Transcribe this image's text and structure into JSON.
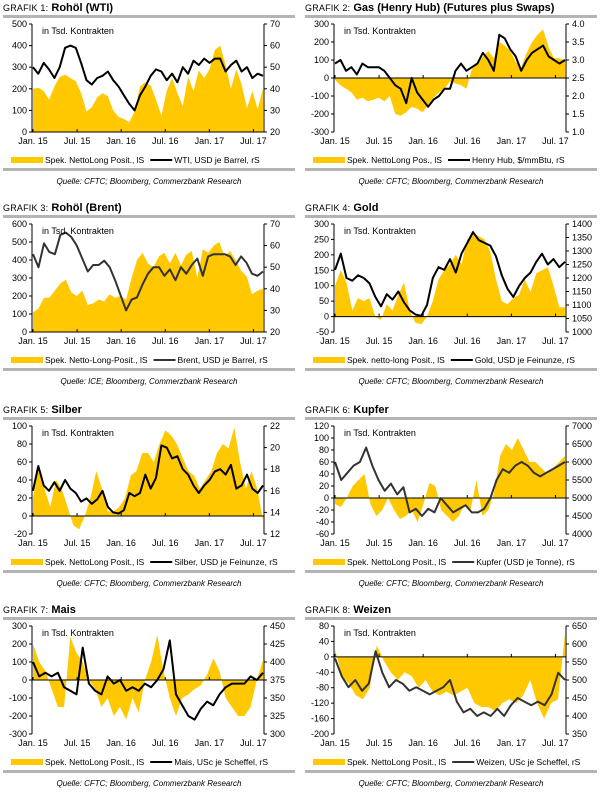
{
  "chart_data": [
    {
      "type": "area+line",
      "label_prefix": "GRAFIK 1:",
      "title": "Rohöl (WTI)",
      "annotation": "in Tsd. Kontrakten",
      "x_ticks": [
        "Jan. 15",
        "Jul. 15",
        "Jan. 16",
        "Jul. 16",
        "Jan. 17",
        "Jul. 17"
      ],
      "left_axis": {
        "ylim": [
          0,
          500
        ],
        "ticks": [
          "0",
          "100",
          "200",
          "300",
          "400",
          "500"
        ]
      },
      "right_axis": {
        "ylim": [
          20,
          70
        ],
        "ticks": [
          "20",
          "30",
          "40",
          "50",
          "60",
          "70"
        ]
      },
      "area_series": {
        "name": "Spek. NettoLong Posit., lS",
        "color": "#ffc800",
        "values": [
          200,
          205,
          190,
          150,
          210,
          255,
          265,
          250,
          235,
          180,
          95,
          115,
          160,
          180,
          165,
          100,
          70,
          60,
          45,
          95,
          210,
          230,
          215,
          150,
          75,
          190,
          250,
          180,
          120,
          255,
          190,
          285,
          250,
          290,
          380,
          400,
          310,
          200,
          290,
          220,
          110,
          190,
          105,
          200
        ]
      },
      "line_series": {
        "name": "WTI, USD je Barrel, rS",
        "color": "#000000",
        "values": [
          50,
          47,
          52,
          49,
          45,
          50,
          59,
          60,
          59,
          52,
          44,
          42,
          45,
          46,
          48,
          44,
          41,
          37,
          33,
          30,
          37,
          41,
          46,
          49,
          48,
          44,
          47,
          43,
          50,
          47,
          53,
          51,
          54,
          52,
          54,
          54,
          48,
          51,
          53,
          48,
          50,
          45,
          47,
          46
        ]
      },
      "source": "Quelle: CFTC; Bloomberg, Commerzbank Research"
    },
    {
      "type": "area+line",
      "label_prefix": "GRAFIK 2:",
      "title": "Gas (Henry Hub) (Futures plus Swaps)",
      "annotation": "in Tsd. Kontrakten",
      "x_ticks": [
        "Jan. 15",
        "Jul. 15",
        "Jan. 16",
        "Jul. 16",
        "Jan. 17",
        "Jul. 17"
      ],
      "left_axis": {
        "ylim": [
          -300,
          300
        ],
        "ticks": [
          "-300",
          "-200",
          "-100",
          "0",
          "100",
          "200",
          "300"
        ]
      },
      "right_axis": {
        "ylim": [
          1.0,
          4.0
        ],
        "ticks": [
          "1.0",
          "1.5",
          "2.0",
          "2.5",
          "3.0",
          "3.5",
          "4.0"
        ]
      },
      "area_series": {
        "name": "Spek. NettoLong Pos., lS",
        "color": "#ffc800",
        "values": [
          -10,
          -40,
          -60,
          -80,
          -120,
          -110,
          -130,
          -120,
          -110,
          -130,
          -100,
          -200,
          -210,
          -190,
          -160,
          -170,
          -190,
          -150,
          -110,
          -80,
          -60,
          -20,
          -30,
          -40,
          -60,
          50,
          80,
          120,
          150,
          110,
          200,
          180,
          150,
          90,
          60,
          140,
          200,
          240,
          270,
          170,
          110,
          110,
          100
        ]
      },
      "line_series": {
        "name": "Henry Hub, $/mmBtu, rS",
        "color": "#000000",
        "values": [
          2.9,
          3.0,
          2.7,
          2.8,
          2.6,
          2.9,
          2.8,
          2.8,
          2.8,
          2.7,
          2.5,
          2.3,
          2.2,
          1.8,
          2.5,
          2.1,
          1.9,
          1.7,
          1.9,
          2.0,
          2.2,
          2.2,
          2.7,
          2.9,
          2.7,
          2.8,
          2.9,
          3.2,
          3.0,
          2.7,
          3.7,
          3.6,
          3.3,
          3.1,
          2.7,
          3.0,
          3.2,
          3.3,
          3.4,
          3.1,
          3.0,
          2.9,
          3.0
        ]
      },
      "source": "Quelle: CFTC; Bloomberg, Commerzbank Research"
    },
    {
      "type": "area+line",
      "label_prefix": "GRAFIK 3:",
      "title": "Rohöl (Brent)",
      "annotation": "in Tsd. Kontrakten",
      "x_ticks": [
        "Jan. 15",
        "Jul. 15",
        "Jan. 16",
        "Jul. 16",
        "Jan. 17",
        "Jul. 17"
      ],
      "left_axis": {
        "ylim": [
          0,
          600
        ],
        "ticks": [
          "0",
          "100",
          "200",
          "300",
          "400",
          "500",
          "600"
        ]
      },
      "right_axis": {
        "ylim": [
          20,
          70
        ],
        "ticks": [
          "20",
          "30",
          "40",
          "50",
          "60",
          "70"
        ]
      },
      "area_series": {
        "name": "Spek. Netto-Long-Posit., lS",
        "color": "#ffc800",
        "values": [
          110,
          130,
          190,
          190,
          230,
          270,
          290,
          220,
          200,
          230,
          150,
          160,
          180,
          170,
          210,
          190,
          200,
          180,
          300,
          400,
          440,
          380,
          360,
          420,
          440,
          380,
          440,
          370,
          430,
          450,
          300,
          460,
          440,
          480,
          500,
          420,
          450,
          400,
          340,
          310,
          210,
          230,
          240
        ]
      },
      "line_series": {
        "name": "Brent, USD je Barrel, rS",
        "color": "#333333",
        "values": [
          56,
          50,
          61,
          57,
          56,
          65,
          66,
          64,
          60,
          54,
          48,
          51,
          51,
          53,
          50,
          44,
          37,
          30,
          35,
          36,
          42,
          47,
          50,
          50,
          46,
          49,
          44,
          50,
          47,
          51,
          54,
          46,
          55,
          56,
          56,
          56,
          55,
          51,
          55,
          52,
          47,
          46,
          48
        ]
      },
      "source": "Quelle: ICE; Bloomberg, Commerzbank Research"
    },
    {
      "type": "area+line",
      "label_prefix": "GRAFIK 4:",
      "title": "Gold",
      "annotation": "in Tsd. Kontrakten",
      "x_ticks": [
        "Jan. 15",
        "Jul. 15",
        "Jan. 16",
        "Jul. 16",
        "Jan. 17",
        "Jul. 17"
      ],
      "left_axis": {
        "ylim": [
          -50,
          300
        ],
        "ticks": [
          "-50",
          "0",
          "50",
          "100",
          "150",
          "200",
          "250",
          "300"
        ]
      },
      "right_axis": {
        "ylim": [
          1000,
          1400
        ],
        "ticks": [
          "1000",
          "1050",
          "1100",
          "1150",
          "1200",
          "1250",
          "1300",
          "1350",
          "1400"
        ]
      },
      "area_series": {
        "name": "Spek. netto-long Posit., lS",
        "color": "#ffc800",
        "values": [
          100,
          150,
          110,
          20,
          60,
          50,
          60,
          0,
          -10,
          40,
          20,
          70,
          110,
          20,
          -20,
          -25,
          0,
          50,
          120,
          150,
          170,
          200,
          170,
          250,
          270,
          260,
          250,
          210,
          120,
          50,
          40,
          60,
          70,
          120,
          80,
          140,
          150,
          160,
          100,
          30,
          30
        ]
      },
      "line_series": {
        "name": "Gold, USD je Feinunze, rS",
        "color": "#000000",
        "values": [
          1230,
          1290,
          1200,
          1190,
          1210,
          1200,
          1180,
          1130,
          1095,
          1140,
          1120,
          1150,
          1110,
          1080,
          1065,
          1060,
          1100,
          1200,
          1240,
          1230,
          1270,
          1220,
          1290,
          1330,
          1370,
          1340,
          1330,
          1320,
          1280,
          1210,
          1160,
          1130,
          1170,
          1200,
          1220,
          1260,
          1290,
          1250,
          1270,
          1240,
          1260
        ]
      },
      "source": "Quelle: CFTC; Bloomberg, Commerzbank Research"
    },
    {
      "type": "area+line",
      "label_prefix": "GRAFIK 5:",
      "title": "Silber",
      "annotation": "in Tsd. Kontrakten",
      "x_ticks": [
        "Jan. 15",
        "Jul. 15",
        "Jan. 16",
        "Jul. 16",
        "Jan. 17",
        "Jul. 17"
      ],
      "left_axis": {
        "ylim": [
          -20,
          100
        ],
        "ticks": [
          "-20",
          "0",
          "20",
          "40",
          "60",
          "80",
          "100"
        ]
      },
      "right_axis": {
        "ylim": [
          12,
          22
        ],
        "ticks": [
          "12",
          "14",
          "16",
          "18",
          "20",
          "22"
        ]
      },
      "area_series": {
        "name": "Spek. NettoLong Posit., lS",
        "color": "#ffc800",
        "values": [
          20,
          55,
          30,
          10,
          40,
          30,
          10,
          -10,
          -15,
          0,
          20,
          50,
          30,
          5,
          5,
          10,
          20,
          45,
          50,
          70,
          70,
          60,
          80,
          95,
          90,
          80,
          65,
          50,
          45,
          30,
          40,
          50,
          70,
          80,
          75,
          98,
          60,
          30,
          50,
          30,
          -5
        ]
      },
      "line_series": {
        "name": "Silber, USD je Feinunze, rS",
        "color": "#000000",
        "values": [
          16,
          18.3,
          16.5,
          16,
          16.8,
          16,
          17,
          16.2,
          15.8,
          15,
          15.3,
          14.8,
          15.2,
          16,
          14.5,
          14,
          13.9,
          14.2,
          15.8,
          15.5,
          15.8,
          17.5,
          16.2,
          17.2,
          20.2,
          20,
          19,
          19.2,
          18,
          17.5,
          16.5,
          15.8,
          16.5,
          17,
          17.8,
          18,
          17.5,
          18.4,
          16.2,
          16.5,
          17.5,
          16.2,
          15.8,
          16.5
        ]
      },
      "source": "Quelle: CFTC; Bloomberg, Commerzbank Research"
    },
    {
      "type": "area+line",
      "label_prefix": "GRAFIK 6:",
      "title": "Kupfer",
      "annotation": "in Tsd. Kontrakten",
      "x_ticks": [
        "Jan. 15",
        "Jul. 15",
        "Jan. 16",
        "Jul. 16",
        "Jan. 17",
        "Jul. 17"
      ],
      "left_axis": {
        "ylim": [
          -60,
          120
        ],
        "ticks": [
          "-60",
          "-40",
          "-20",
          "0",
          "20",
          "40",
          "60",
          "80",
          "100",
          "120"
        ]
      },
      "right_axis": {
        "ylim": [
          4000,
          7000
        ],
        "ticks": [
          "4000",
          "4500",
          "5000",
          "5500",
          "6000",
          "6500",
          "7000"
        ]
      },
      "area_series": {
        "name": "Spek. NettoLong Posit., lS",
        "color": "#ffc800",
        "values": [
          -10,
          -15,
          0,
          20,
          30,
          40,
          -10,
          -30,
          -20,
          0,
          -20,
          -35,
          -30,
          -20,
          -40,
          -10,
          25,
          20,
          -20,
          -30,
          -40,
          -30,
          -10,
          -20,
          30,
          -30,
          -20,
          10,
          70,
          90,
          80,
          100,
          80,
          60,
          60,
          50,
          40,
          50,
          60,
          70
        ]
      },
      "line_series": {
        "name": "Kupfer (USD je Tonne), rS",
        "color": "#333333",
        "values": [
          6000,
          5500,
          5700,
          5900,
          6000,
          6400,
          5900,
          5500,
          5200,
          5400,
          5100,
          5300,
          4600,
          4700,
          4500,
          4700,
          4600,
          5000,
          4800,
          4600,
          4700,
          4800,
          4600,
          4600,
          4700,
          5000,
          5500,
          5800,
          5700,
          5900,
          6000,
          5900,
          5700,
          5600,
          5700,
          5800,
          5900,
          6000
        ]
      },
      "source": "Quelle: CFTC; Bloomberg, Commerzbank Research"
    },
    {
      "type": "area+line",
      "label_prefix": "GRAFIK 7:",
      "title": "Mais",
      "annotation": "in Tsd. Kontrakten",
      "x_ticks": [
        "Jan. 15",
        "Jul. 15",
        "Jan. 16",
        "Jul. 16",
        "Jan. 17",
        "Jul. 17"
      ],
      "left_axis": {
        "ylim": [
          -300,
          300
        ],
        "ticks": [
          "-300",
          "-200",
          "-100",
          "0",
          "100",
          "200",
          "300"
        ]
      },
      "right_axis": {
        "ylim": [
          300,
          450
        ],
        "ticks": [
          "300",
          "325",
          "350",
          "375",
          "400",
          "425",
          "450"
        ]
      },
      "area_series": {
        "name": "Spek. NettoLong Posit., lS",
        "color": "#ffc800",
        "values": [
          200,
          100,
          50,
          -50,
          -150,
          -150,
          240,
          150,
          100,
          0,
          -50,
          -150,
          -100,
          -200,
          -150,
          -220,
          -100,
          -180,
          0,
          100,
          250,
          50,
          -100,
          -200,
          -100,
          -80,
          -50,
          -30,
          30,
          120,
          50,
          -100,
          -150,
          -200,
          -200,
          -150,
          0,
          110
        ]
      },
      "line_series": {
        "name": "Mais, USc je Scheffel, rS",
        "color": "#000000",
        "values": [
          400,
          380,
          385,
          380,
          385,
          365,
          360,
          355,
          420,
          370,
          360,
          355,
          380,
          370,
          375,
          360,
          365,
          360,
          370,
          365,
          375,
          390,
          430,
          355,
          340,
          325,
          320,
          335,
          345,
          340,
          355,
          365,
          370,
          370,
          370,
          380,
          375,
          385
        ]
      },
      "source": "Quelle: CFTC; Bloomberg, Commerzbank Research"
    },
    {
      "type": "area+line",
      "label_prefix": "GRAFIK 8:",
      "title": "Weizen",
      "annotation": "in Tsd. Kontrakten",
      "x_ticks": [
        "Jan. 15",
        "Jul. 15",
        "Jan. 16",
        "Jul. 16",
        "Jan. 17",
        "Jul. 17"
      ],
      "left_axis": {
        "ylim": [
          -200,
          80
        ],
        "ticks": [
          "-200",
          "-160",
          "-120",
          "-80",
          "-40",
          "0",
          "40",
          "80"
        ]
      },
      "right_axis": {
        "ylim": [
          350,
          650
        ],
        "ticks": [
          "350",
          "400",
          "450",
          "500",
          "550",
          "600",
          "650"
        ]
      },
      "area_series": {
        "name": "Spek. NettoLong Posit., lS",
        "color": "#ffc800",
        "values": [
          20,
          -50,
          -70,
          -100,
          -110,
          -80,
          30,
          -10,
          -40,
          -60,
          -40,
          -50,
          -80,
          -60,
          -90,
          -100,
          -90,
          -100,
          -90,
          -80,
          -120,
          -130,
          -130,
          -140,
          -120,
          -110,
          -120,
          -100,
          -60,
          -120,
          -160,
          -120,
          -110,
          60
        ]
      },
      "line_series": {
        "name": "Weizen, USc je Scheffel, rS",
        "color": "#333333",
        "values": [
          560,
          510,
          480,
          500,
          470,
          490,
          580,
          520,
          480,
          500,
          490,
          470,
          480,
          470,
          460,
          470,
          480,
          500,
          440,
          410,
          420,
          400,
          410,
          400,
          420,
          400,
          430,
          450,
          440,
          430,
          440,
          430,
          460,
          520,
          500
        ]
      },
      "source": "Quelle: CFTC; Bloomberg, Commerzbank Research"
    }
  ]
}
